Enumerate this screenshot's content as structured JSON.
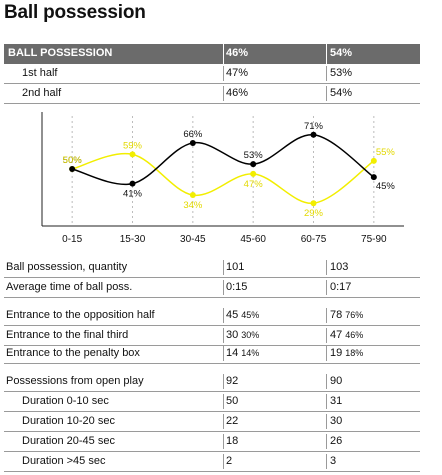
{
  "title": "Ball possession",
  "table_top": {
    "header": [
      "BALL POSSESSION",
      "46%",
      "54%"
    ],
    "rows": [
      {
        "label": "1st half",
        "a": "47%",
        "b": "53%"
      },
      {
        "label": "2nd half",
        "a": "46%",
        "b": "54%"
      }
    ]
  },
  "chart_data": {
    "type": "line",
    "categories": [
      "0-15",
      "15-30",
      "30-45",
      "45-60",
      "60-75",
      "75-90"
    ],
    "series": [
      {
        "values": [
          50,
          41,
          66,
          53,
          71,
          45
        ],
        "labels": [
          "50%",
          "41%",
          "66%",
          "53%",
          "71%",
          "45%"
        ]
      },
      {
        "values": [
          50,
          59,
          34,
          47,
          29,
          55
        ],
        "labels": [
          "50%",
          "59%",
          "34%",
          "47%",
          "29%",
          "55%"
        ]
      }
    ],
    "ylim": [
      15,
      85
    ],
    "colors": {
      "team_a": "#000000",
      "team_b": "#f2ee00",
      "team_b_label": "#e3d900",
      "axis": "#222222",
      "grid": "#bcbcbc"
    }
  },
  "table_bottom": [
    {
      "label": "Ball possession, quantity",
      "a": "101",
      "b": "103"
    },
    {
      "label": "Average time of ball poss.",
      "a": "0:15",
      "b": "0:17"
    },
    {
      "label": "Entrance to the opposition half",
      "a": "45",
      "a_pct": "45%",
      "b": "78",
      "b_pct": "76%"
    },
    {
      "label": "Entrance to the final third",
      "a": "30",
      "a_pct": "30%",
      "b": "47",
      "b_pct": "46%"
    },
    {
      "label": "Entrance to the penalty box",
      "a": "14",
      "a_pct": "14%",
      "b": "19",
      "b_pct": "18%"
    },
    {
      "label": "Possessions from open play",
      "a": "92",
      "b": "90"
    },
    {
      "label": "Duration  0-10 sec",
      "a": "50",
      "b": "31"
    },
    {
      "label": "Duration  10-20 sec",
      "a": "22",
      "b": "30"
    },
    {
      "label": "Duration  20-45 sec",
      "a": "18",
      "b": "26"
    },
    {
      "label": "Duration  >45 sec",
      "a": "2",
      "b": "3"
    }
  ]
}
